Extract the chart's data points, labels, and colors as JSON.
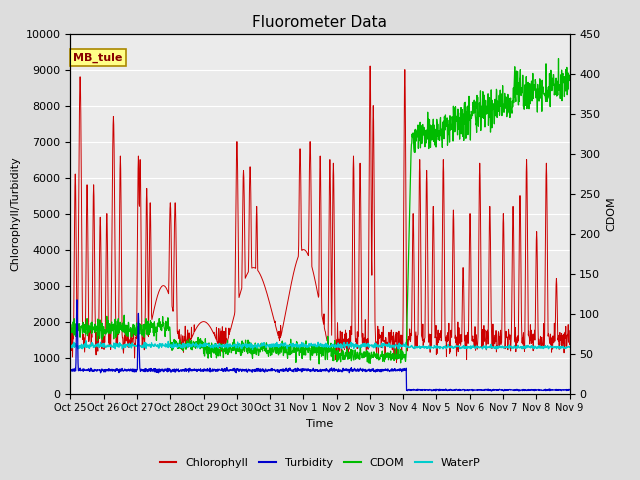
{
  "title": "Fluorometer Data",
  "xlabel": "Time",
  "ylabel_left": "Chlorophyll/Turbidity",
  "ylabel_right": "CDOM",
  "ylim_left": [
    0,
    10000
  ],
  "ylim_right": [
    0,
    450
  ],
  "annotation_text": "MB_tule",
  "annotation_bg": "#ffff88",
  "annotation_border": "#aa8800",
  "tick_labels": [
    "Oct 25",
    "Oct 26",
    "Oct 27",
    "Oct 28",
    "Oct 29",
    "Oct 30",
    "Oct 31",
    "Nov 1",
    "Nov 2",
    "Nov 3",
    "Nov 4",
    "Nov 5",
    "Nov 6",
    "Nov 7",
    "Nov 8",
    "Nov 9"
  ],
  "colors": {
    "chlorophyll": "#cc0000",
    "turbidity": "#0000cc",
    "cdom": "#00bb00",
    "waterp": "#00cccc"
  },
  "legend_labels": [
    "Chlorophyll",
    "Turbidity",
    "CDOM",
    "WaterP"
  ],
  "n_days": 15,
  "pts_per_day": 96
}
